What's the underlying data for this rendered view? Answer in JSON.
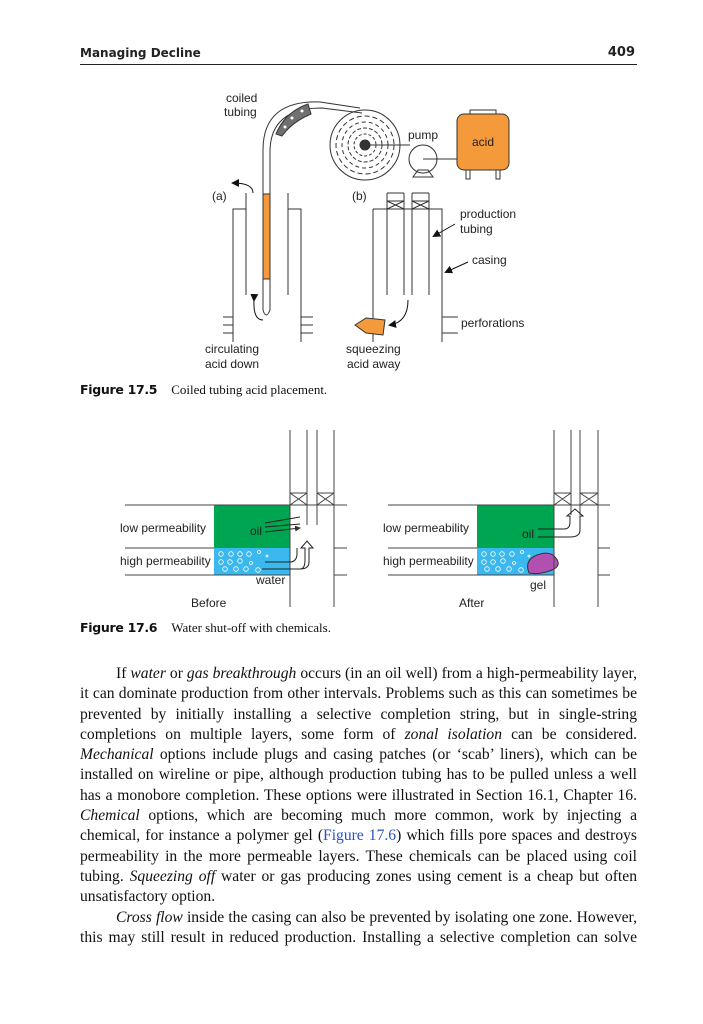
{
  "header": {
    "title": "Managing Decline",
    "page_number": "409"
  },
  "figure1": {
    "labels": {
      "coiled": "coiled",
      "tubing": "tubing",
      "pump": "pump",
      "acid": "acid",
      "a": "(a)",
      "b": "(b)",
      "production": "production",
      "production_tubing": "tubing",
      "casing": "casing",
      "perforations": "perforations",
      "circulating": "circulating",
      "acid_down": "acid down",
      "squeezing": "squeezing",
      "acid_away": "acid away"
    },
    "caption_number": "Figure 17.5",
    "caption_text": "Coiled tubing acid placement.",
    "colors": {
      "acid": "#f59a3a",
      "coil_guide": "#707070"
    }
  },
  "figure2": {
    "before": {
      "low": "low permeability",
      "high": "high permeability",
      "oil": "oil",
      "water": "water",
      "title": "Before"
    },
    "after": {
      "low": "low permeability",
      "high": "high permeability",
      "oil": "oil",
      "gel": "gel",
      "title": "After"
    },
    "caption_number": "Figure 17.6",
    "caption_text": "Water shut-off with chemicals.",
    "colors": {
      "oil_zone": "#00a551",
      "water_zone": "#3bb9ef",
      "gel": "#b150b0"
    }
  },
  "body": {
    "p1": [
      "If ",
      "water",
      " or ",
      "gas breakthrough",
      " occurs (in an oil well) from a high-permeability layer, it can dominate production from other intervals. Problems such as this can sometimes be prevented by initially installing a selective completion string, but in single-string completions on multiple layers, some form of ",
      "zonal isolation",
      " can be considered. ",
      "Mechanical",
      " options include plugs and casing patches (or ‘scab’ liners), which can be installed on wireline or pipe, although production tubing has to be pulled unless a well has a monobore completion. These options were illustrated in Section 16.1, Chapter 16. ",
      "Chemical",
      " options, which are becoming much more common, work by injecting a chemical, for instance a polymer gel (",
      "Figure 17.6",
      ") which fills pore spaces and destroys permeability in the more permeable layers. These chemicals can be placed using coil tubing. ",
      "Squeezing off",
      " water or gas producing zones using cement is a cheap but often unsatisfactory option."
    ],
    "p2": [
      "Cross flow",
      " inside the casing can also be prevented by isolating one zone. However, this may still result in reduced production. Installing a selective completion can solve"
    ]
  }
}
